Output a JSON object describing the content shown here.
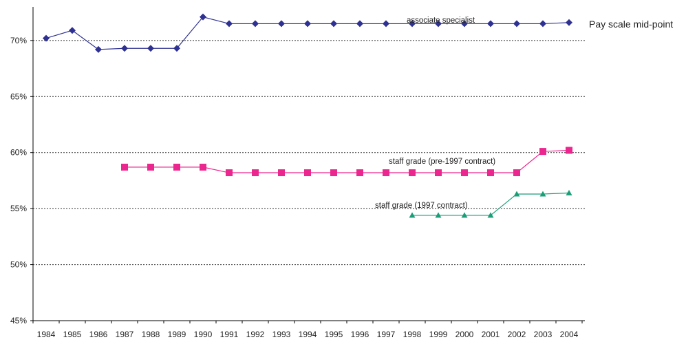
{
  "chart_data": {
    "type": "line",
    "x": [
      1984,
      1985,
      1986,
      1987,
      1988,
      1989,
      1990,
      1991,
      1992,
      1993,
      1994,
      1995,
      1996,
      1997,
      1998,
      1999,
      2000,
      2001,
      2002,
      2003,
      2004
    ],
    "xticklabels": [
      "1984",
      "1985",
      "1986",
      "1987",
      "1988",
      "1989",
      "1990",
      "1991",
      "1992",
      "1993",
      "1994",
      "1995",
      "1996",
      "1997",
      "1998",
      "1999",
      "2000",
      "2001",
      "2002",
      "2003",
      "2004"
    ],
    "yticklabels": [
      "45%",
      "50%",
      "55%",
      "60%",
      "65%",
      "70%"
    ],
    "yticks": [
      45,
      50,
      55,
      60,
      65,
      70
    ],
    "ylim": [
      45,
      73
    ],
    "ylabel": "Pay scale mid-point",
    "xlabel": "",
    "grid": "horizontal dotted",
    "series": [
      {
        "name": "associate specialist",
        "color": "#2e3192",
        "marker": "diamond",
        "x": [
          1984,
          1985,
          1986,
          1987,
          1988,
          1989,
          1990,
          1991,
          1992,
          1993,
          1994,
          1995,
          1996,
          1997,
          1998,
          1999,
          2000,
          2001,
          2002,
          2003,
          2004
        ],
        "values": [
          70.2,
          70.9,
          69.2,
          69.3,
          69.3,
          69.3,
          72.1,
          71.5,
          71.5,
          71.5,
          71.5,
          71.5,
          71.5,
          71.5,
          71.5,
          71.5,
          71.5,
          71.5,
          71.5,
          71.5,
          71.6
        ]
      },
      {
        "name": "staff grade (pre-1997 contract)",
        "color": "#ec268f",
        "marker": "square",
        "x": [
          1987,
          1988,
          1989,
          1990,
          1991,
          1992,
          1993,
          1994,
          1995,
          1996,
          1997,
          1998,
          1999,
          2000,
          2001,
          2002,
          2003,
          2004
        ],
        "values": [
          58.7,
          58.7,
          58.7,
          58.7,
          58.2,
          58.2,
          58.2,
          58.2,
          58.2,
          58.2,
          58.2,
          58.2,
          58.2,
          58.2,
          58.2,
          58.2,
          60.1,
          60.2
        ]
      },
      {
        "name": "staff grade (1997 contract)",
        "color": "#1a9e77",
        "marker": "triangle",
        "x": [
          1998,
          1999,
          2000,
          2001,
          2002,
          2003,
          2004
        ],
        "values": [
          54.4,
          54.4,
          54.4,
          54.4,
          56.3,
          56.3,
          56.4
        ]
      }
    ]
  }
}
